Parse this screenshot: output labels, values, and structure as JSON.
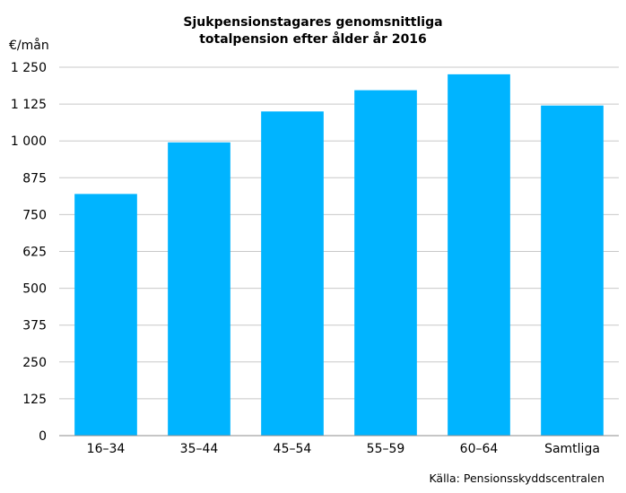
{
  "chart_data": {
    "type": "bar",
    "title": "Sjukpensionstagares genomsnittliga\ntotalpension efter ålder år 2016",
    "ylabel": "€/mån",
    "xlabel": "",
    "categories": [
      "16–34",
      "35–44",
      "45–54",
      "55–59",
      "60–64",
      "Samtliga"
    ],
    "values": [
      820,
      995,
      1100,
      1172,
      1226,
      1120
    ],
    "ylim": [
      0,
      1250
    ],
    "yticks": [
      0,
      125,
      250,
      375,
      500,
      625,
      750,
      875,
      1000,
      1125,
      1250
    ],
    "ytick_labels": [
      "0",
      "125",
      "250",
      "375",
      "500",
      "625",
      "750",
      "875",
      "1 000",
      "1 125",
      "1 250"
    ],
    "bar_color": "#00b4ff",
    "grid": true,
    "legend": "none"
  },
  "source": "Källa: Pensionsskyddscentralen"
}
